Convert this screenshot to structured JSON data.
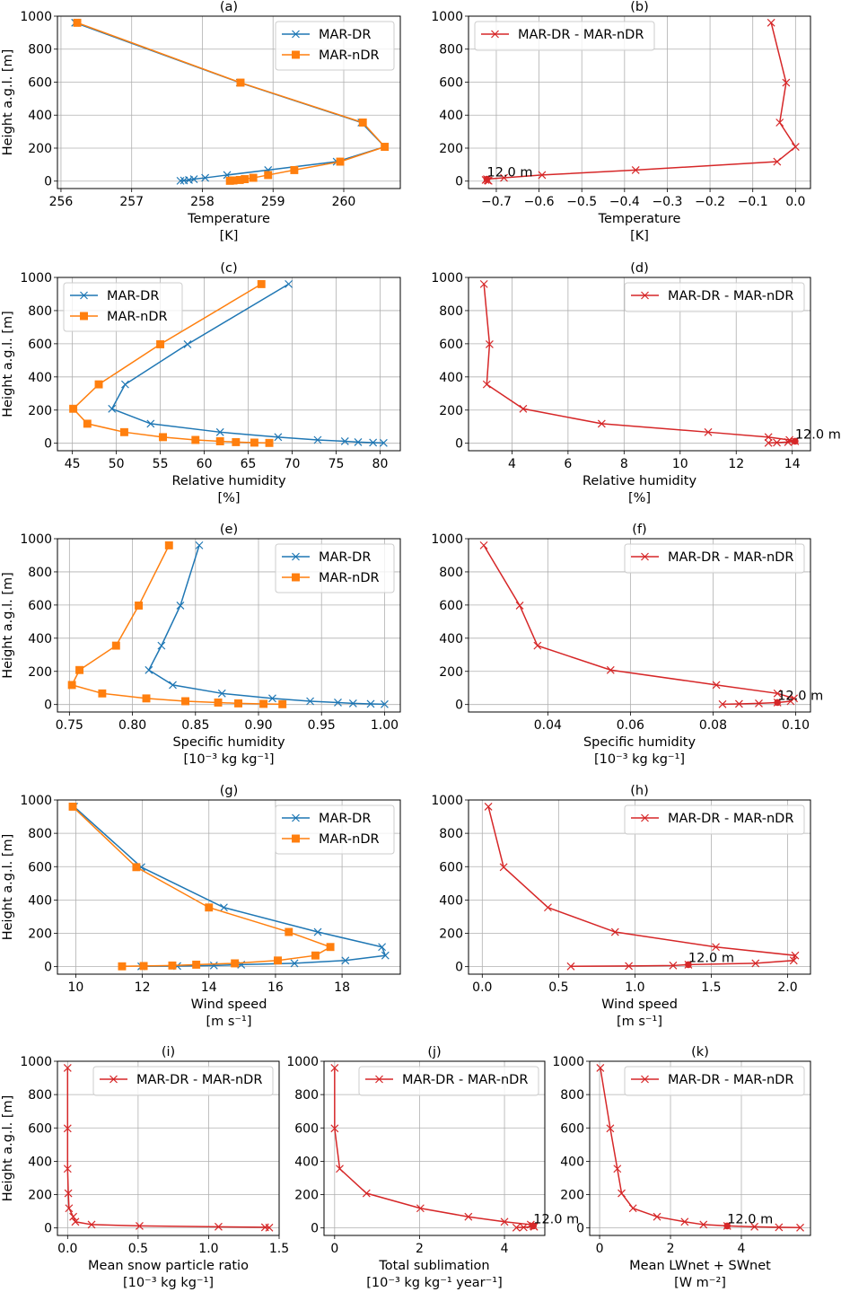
{
  "figure": {
    "ylabel": "Height a.g.l. [m]"
  },
  "colors": {
    "mar_dr": "#1f77b4",
    "mar_ndr": "#ff7f0e",
    "diff": "#d62728"
  },
  "legend": {
    "mar_dr": "MAR-DR",
    "mar_ndr": "MAR-nDR",
    "diff": "MAR-DR - MAR-nDR"
  },
  "chart_data": [
    {
      "id": "a",
      "type": "line",
      "title": "(a)",
      "xlabel": "Temperature",
      "xunit": "[K]",
      "ylabel": "Height a.g.l. [m]",
      "xlim": [
        255.95,
        260.8
      ],
      "ylim": [
        -45,
        1000
      ],
      "xticks": [
        256,
        257,
        258,
        259,
        260
      ],
      "xtick_labels": [
        "256",
        "257",
        "258",
        "259",
        "260"
      ],
      "yticks": [
        0,
        200,
        400,
        600,
        800,
        1000
      ],
      "legend_loc": "upper right",
      "y": [
        960,
        597,
        355,
        208,
        118,
        67,
        37,
        20,
        12,
        7,
        4,
        2
      ],
      "series": [
        {
          "name": "MAR-DR",
          "key": "mar_dr",
          "marker": "x",
          "values": [
            256.2,
            258.53,
            260.25,
            260.58,
            259.9,
            258.93,
            258.35,
            258.04,
            257.88,
            257.81,
            257.74,
            257.69
          ]
        },
        {
          "name": "MAR-nDR",
          "key": "mar_ndr",
          "marker": "square",
          "values": [
            256.23,
            258.54,
            260.27,
            260.58,
            259.95,
            259.3,
            258.93,
            258.72,
            258.6,
            258.53,
            258.44,
            258.39
          ]
        }
      ],
      "grid": true
    },
    {
      "id": "b",
      "type": "line",
      "title": "(b)",
      "xlabel": "Temperature",
      "xunit": "[K]",
      "ylabel": "",
      "xlim": [
        -0.765,
        0.035
      ],
      "ylim": [
        -45,
        1000
      ],
      "xticks": [
        -0.7,
        -0.6,
        -0.5,
        -0.4,
        -0.3,
        -0.2,
        -0.1,
        0.0
      ],
      "xtick_labels": [
        "−0.7",
        "−0.6",
        "−0.5",
        "−0.4",
        "−0.3",
        "−0.2",
        "−0.1",
        "0.0"
      ],
      "yticks": [
        0,
        200,
        400,
        600,
        800,
        1000
      ],
      "legend_loc": "upper left",
      "y": [
        960,
        597,
        355,
        208,
        118,
        67,
        37,
        20,
        12,
        7,
        4,
        2
      ],
      "series": [
        {
          "name": "MAR-DR - MAR-nDR",
          "key": "diff",
          "marker": "x",
          "values": [
            -0.057,
            -0.022,
            -0.037,
            0.0,
            -0.043,
            -0.374,
            -0.593,
            -0.682,
            -0.722,
            -0.725,
            -0.72,
            -0.718
          ]
        }
      ],
      "highlight": {
        "height": 12,
        "value": -0.722,
        "label": "12.0 m"
      },
      "grid": true
    },
    {
      "id": "c",
      "type": "line",
      "title": "(c)",
      "xlabel": "Relative humidity",
      "xunit": "[%]",
      "ylabel": "Height a.g.l. [m]",
      "xlim": [
        43.3,
        82.3
      ],
      "ylim": [
        -45,
        1000
      ],
      "xticks": [
        45,
        50,
        55,
        60,
        65,
        70,
        75,
        80
      ],
      "xtick_labels": [
        "45",
        "50",
        "55",
        "60",
        "65",
        "70",
        "75",
        "80"
      ],
      "yticks": [
        0,
        200,
        400,
        600,
        800,
        1000
      ],
      "legend_loc": "upper left",
      "y": [
        960,
        597,
        355,
        208,
        118,
        67,
        37,
        20,
        12,
        7,
        4,
        2
      ],
      "series": [
        {
          "name": "MAR-DR",
          "key": "mar_dr",
          "marker": "x",
          "values": [
            69.6,
            58.1,
            51.0,
            49.5,
            53.9,
            61.8,
            68.4,
            72.9,
            76.0,
            77.5,
            79.2,
            80.4
          ]
        },
        {
          "name": "MAR-nDR",
          "key": "mar_ndr",
          "marker": "square",
          "values": [
            66.5,
            55.0,
            48.0,
            45.1,
            46.7,
            50.9,
            55.3,
            59.0,
            61.8,
            63.6,
            65.7,
            67.4
          ]
        }
      ],
      "grid": true
    },
    {
      "id": "d",
      "type": "line",
      "title": "(d)",
      "xlabel": "Relative humidity",
      "xunit": "[%]",
      "ylabel": "",
      "xlim": [
        2.45,
        14.65
      ],
      "ylim": [
        -45,
        1000
      ],
      "xticks": [
        4,
        6,
        8,
        10,
        12,
        14
      ],
      "xtick_labels": [
        "4",
        "6",
        "8",
        "10",
        "12",
        "14"
      ],
      "yticks": [
        0,
        200,
        400,
        600,
        800,
        1000
      ],
      "legend_loc": "upper right",
      "y": [
        960,
        597,
        355,
        208,
        118,
        67,
        37,
        20,
        12,
        7,
        4,
        2
      ],
      "series": [
        {
          "name": "MAR-DR - MAR-nDR",
          "key": "diff",
          "marker": "x",
          "values": [
            3.0,
            3.2,
            3.1,
            4.4,
            7.2,
            11.0,
            13.15,
            13.9,
            14.1,
            13.85,
            13.45,
            13.15
          ]
        }
      ],
      "highlight": {
        "height": 12,
        "value": 14.1,
        "label": "12.0 m"
      },
      "grid": true
    },
    {
      "id": "e",
      "type": "line",
      "title": "(e)",
      "xlabel": "Specific humidity",
      "xunit": "[10⁻³ kg kg⁻¹]",
      "ylabel": "Height a.g.l. [m]",
      "xlim": [
        0.7405,
        1.0125
      ],
      "ylim": [
        -45,
        1000
      ],
      "xticks": [
        0.75,
        0.8,
        0.85,
        0.9,
        0.95,
        1.0
      ],
      "xtick_labels": [
        "0.75",
        "0.80",
        "0.85",
        "0.90",
        "0.95",
        "1.00"
      ],
      "yticks": [
        0,
        200,
        400,
        600,
        800,
        1000
      ],
      "legend_loc": "upper right",
      "y": [
        960,
        597,
        355,
        208,
        118,
        67,
        37,
        20,
        12,
        7,
        4,
        2
      ],
      "series": [
        {
          "name": "MAR-DR",
          "key": "mar_dr",
          "marker": "x",
          "values": [
            0.853,
            0.838,
            0.823,
            0.813,
            0.832,
            0.871,
            0.911,
            0.941,
            0.963,
            0.975,
            0.989,
            1.0
          ]
        },
        {
          "name": "MAR-nDR",
          "key": "mar_ndr",
          "marker": "square",
          "values": [
            0.829,
            0.805,
            0.787,
            0.758,
            0.752,
            0.776,
            0.811,
            0.842,
            0.868,
            0.884,
            0.904,
            0.919
          ]
        }
      ],
      "grid": true
    },
    {
      "id": "f",
      "type": "line",
      "title": "(f)",
      "xlabel": "Specific humidity",
      "xunit": "[10⁻³ kg kg⁻¹]",
      "ylabel": "",
      "xlim": [
        0.0208,
        0.1036
      ],
      "ylim": [
        -45,
        1000
      ],
      "xticks": [
        0.04,
        0.06,
        0.08,
        0.1
      ],
      "xtick_labels": [
        "0.04",
        "0.06",
        "0.08",
        "0.10"
      ],
      "yticks": [
        0,
        200,
        400,
        600,
        800,
        1000
      ],
      "legend_loc": "upper right",
      "y": [
        960,
        597,
        355,
        208,
        118,
        67,
        37,
        20,
        12,
        7,
        4,
        2
      ],
      "series": [
        {
          "name": "MAR-DR - MAR-nDR",
          "key": "diff",
          "marker": "x",
          "values": [
            0.0245,
            0.0332,
            0.0375,
            0.0552,
            0.0808,
            0.0956,
            0.0996,
            0.0988,
            0.0956,
            0.0911,
            0.0863,
            0.0823
          ]
        }
      ],
      "highlight": {
        "height": 12,
        "value": 0.0956,
        "label": "12.0 m"
      },
      "grid": true
    },
    {
      "id": "g",
      "type": "line",
      "title": "(g)",
      "xlabel": "Wind speed",
      "xunit": "[m s⁻¹]",
      "ylabel": "Height a.g.l. [m]",
      "xlim": [
        9.45,
        19.75
      ],
      "ylim": [
        -45,
        1000
      ],
      "xticks": [
        10,
        12,
        14,
        16,
        18
      ],
      "xtick_labels": [
        "10",
        "12",
        "14",
        "16",
        "18"
      ],
      "yticks": [
        0,
        200,
        400,
        600,
        800,
        1000
      ],
      "legend_loc": "upper right",
      "y": [
        960,
        597,
        355,
        208,
        118,
        67,
        37,
        20,
        12,
        7,
        4,
        2
      ],
      "series": [
        {
          "name": "MAR-DR",
          "key": "mar_dr",
          "marker": "x",
          "values": [
            9.95,
            11.97,
            14.45,
            17.27,
            19.2,
            19.3,
            18.1,
            16.57,
            14.97,
            14.15,
            13.05,
            11.97
          ]
        },
        {
          "name": "MAR-nDR",
          "key": "mar_ndr",
          "marker": "square",
          "values": [
            9.91,
            11.82,
            14.0,
            16.4,
            17.65,
            17.2,
            16.07,
            14.78,
            13.62,
            12.9,
            12.04,
            11.39
          ]
        }
      ],
      "grid": true
    },
    {
      "id": "h",
      "type": "line",
      "title": "(h)",
      "xlabel": "Wind speed",
      "xunit": "[m s⁻¹]",
      "ylabel": "",
      "xlim": [
        -0.09,
        2.15
      ],
      "ylim": [
        -45,
        1000
      ],
      "xticks": [
        0.0,
        0.5,
        1.0,
        1.5,
        2.0
      ],
      "xtick_labels": [
        "0.0",
        "0.5",
        "1.0",
        "1.5",
        "2.0"
      ],
      "yticks": [
        0,
        200,
        400,
        600,
        800,
        1000
      ],
      "legend_loc": "upper right",
      "y": [
        960,
        597,
        355,
        208,
        118,
        67,
        37,
        20,
        12,
        7,
        4,
        2
      ],
      "series": [
        {
          "name": "MAR-DR - MAR-nDR",
          "key": "diff",
          "marker": "x",
          "values": [
            0.04,
            0.14,
            0.43,
            0.87,
            1.53,
            2.05,
            2.04,
            1.79,
            1.35,
            1.25,
            0.96,
            0.58
          ]
        }
      ],
      "highlight": {
        "height": 12,
        "value": 1.35,
        "label": "12.0 m"
      },
      "grid": true
    },
    {
      "id": "i",
      "type": "line",
      "title": "(i)",
      "xlabel": "Mean snow particle ratio",
      "xunit": "[10⁻³ kg kg⁻¹]",
      "ylabel": "Height a.g.l. [m]",
      "xlim": [
        -0.072,
        1.5
      ],
      "ylim": [
        -45,
        1000
      ],
      "xticks": [
        0.0,
        0.5,
        1.0,
        1.5
      ],
      "xtick_labels": [
        "0.0",
        "0.5",
        "1.0",
        "1.5"
      ],
      "yticks": [
        0,
        200,
        400,
        600,
        800,
        1000
      ],
      "legend_loc": "upper right",
      "y": [
        960,
        597,
        355,
        208,
        118,
        67,
        37,
        20,
        12,
        7,
        4,
        2
      ],
      "series": [
        {
          "name": "MAR-DR - MAR-nDR",
          "key": "diff",
          "marker": "x",
          "values": [
            0.0,
            0.0,
            0.0,
            0.005,
            0.01,
            0.04,
            0.055,
            0.17,
            0.51,
            1.07,
            1.4,
            1.43
          ]
        }
      ],
      "grid": true
    },
    {
      "id": "j",
      "type": "line",
      "title": "(j)",
      "xlabel": "Total sublimation",
      "xunit": "[10⁻³ kg kg⁻¹ year⁻¹]",
      "ylabel": "",
      "xlim": [
        -0.25,
        4.95
      ],
      "ylim": [
        -45,
        1000
      ],
      "xticks": [
        0,
        2,
        4
      ],
      "xtick_labels": [
        "0",
        "2",
        "4"
      ],
      "yticks": [
        0,
        200,
        400,
        600,
        800,
        1000
      ],
      "legend_loc": "upper right",
      "y": [
        960,
        597,
        355,
        208,
        118,
        67,
        37,
        20,
        12,
        7,
        4,
        2
      ],
      "series": [
        {
          "name": "MAR-DR - MAR-nDR",
          "key": "diff",
          "marker": "x",
          "values": [
            0.0,
            0.0,
            0.12,
            0.75,
            2.02,
            3.15,
            4.0,
            4.62,
            4.68,
            4.7,
            4.45,
            4.28
          ]
        }
      ],
      "highlight": {
        "height": 12,
        "value": 4.68,
        "label": "12.0 m"
      },
      "grid": true
    },
    {
      "id": "k",
      "type": "line",
      "title": "(k)",
      "xlabel": "Mean LWnet + SWnet",
      "xunit": "[W m⁻²]",
      "ylabel": "",
      "xlim": [
        -0.28,
        5.95
      ],
      "ylim": [
        -45,
        1000
      ],
      "xticks": [
        0,
        2,
        4
      ],
      "xtick_labels": [
        "0",
        "2",
        "4"
      ],
      "yticks": [
        0,
        200,
        400,
        600,
        800,
        1000
      ],
      "legend_loc": "upper right",
      "y": [
        960,
        597,
        355,
        208,
        118,
        67,
        37,
        20,
        12,
        7,
        4,
        2
      ],
      "series": [
        {
          "name": "MAR-DR - MAR-nDR",
          "key": "diff",
          "marker": "x",
          "values": [
            0.02,
            0.3,
            0.5,
            0.62,
            0.94,
            1.62,
            2.4,
            2.93,
            3.6,
            4.37,
            5.06,
            5.66
          ]
        }
      ],
      "highlight": {
        "height": 12,
        "value": 3.6,
        "label": "12.0 m"
      },
      "grid": true
    }
  ]
}
